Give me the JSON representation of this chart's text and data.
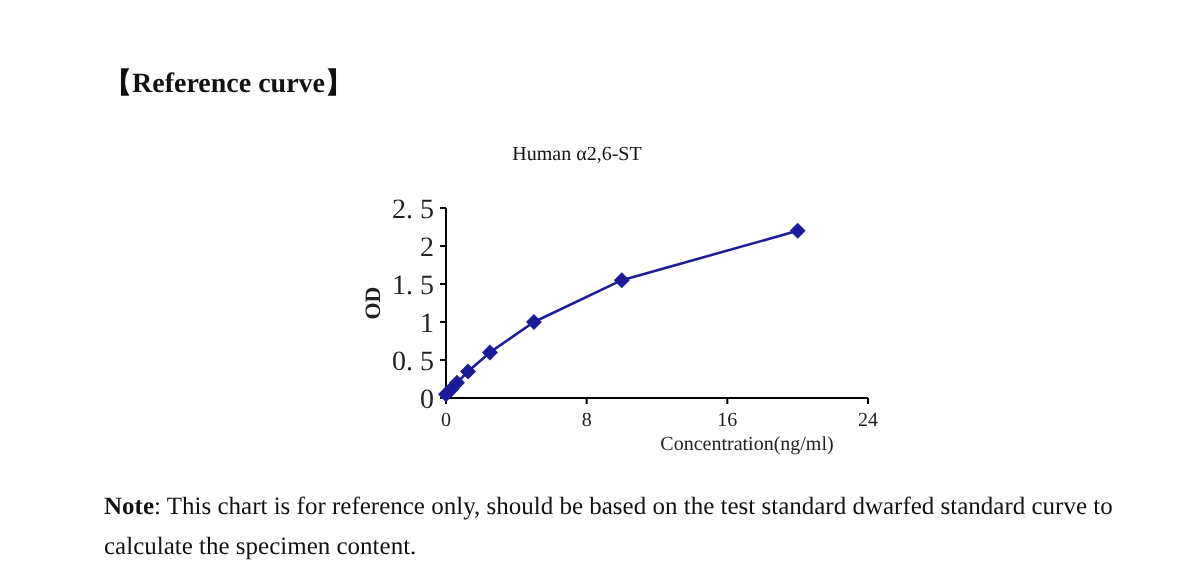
{
  "chart_data": {
    "type": "line",
    "title": "【Reference curve】",
    "subtitle": "Human α2,6-ST",
    "xlabel": "Concentration(ng/ml)",
    "ylabel": "OD",
    "x": [
      0,
      0.312,
      0.625,
      1.25,
      2.5,
      5,
      10,
      20
    ],
    "series": [
      {
        "color": "#1c1c99",
        "values": [
          0.05,
          0.12,
          0.2,
          0.35,
          0.6,
          1.0,
          1.55,
          2.2
        ]
      }
    ],
    "xlim": [
      0,
      24
    ],
    "ylim": [
      0,
      2.5
    ],
    "xticks": [
      0,
      8,
      16,
      24
    ],
    "yticks": [
      0,
      {
        "value": 0.5,
        "label": "0. 5"
      },
      1,
      {
        "value": 1.5,
        "label": "1. 5"
      },
      2,
      {
        "value": 2.5,
        "label": "2. 5"
      }
    ],
    "marker": "diamond",
    "line_style": "solid",
    "grid": false,
    "annotations": [
      "Note: This chart is for reference only, should be based on the test standard dwarfed standard curve to calculate the specimen content."
    ]
  }
}
